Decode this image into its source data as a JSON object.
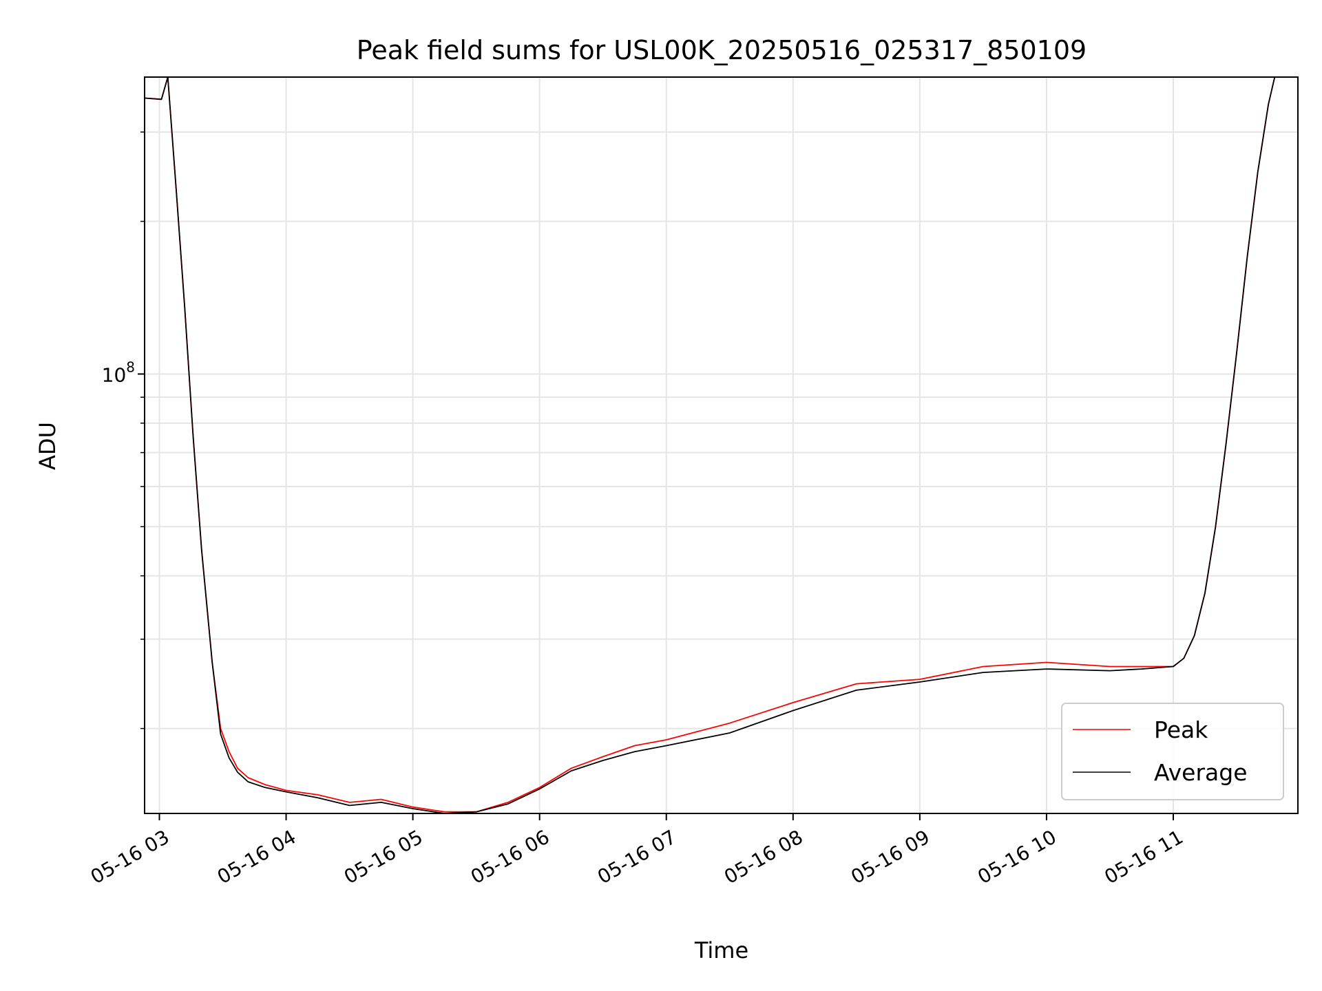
{
  "chart_data": {
    "type": "line",
    "title": "Peak field sums for USL00K_20250516_025317_850109",
    "xlabel": "Time",
    "ylabel": "ADU",
    "y_scale": "log",
    "ylim": [
      13600000,
      385000000
    ],
    "xlim": [
      "05-16 02:53",
      "05-16 11:59"
    ],
    "x_tick_labels": [
      "05-16 03",
      "05-16 04",
      "05-16 05",
      "05-16 06",
      "05-16 07",
      "05-16 08",
      "05-16 09",
      "05-16 10",
      "05-16 11"
    ],
    "x_tick_times": [
      "05-16 03:00",
      "05-16 04:00",
      "05-16 05:00",
      "05-16 06:00",
      "05-16 07:00",
      "05-16 08:00",
      "05-16 09:00",
      "05-16 10:00",
      "05-16 11:00"
    ],
    "y_tick_base": "10",
    "y_tick_exponent": "8",
    "y_tick_value": 100000000,
    "y_minor_ticks": [
      20000000,
      30000000,
      40000000,
      50000000,
      60000000,
      70000000,
      80000000,
      90000000,
      200000000,
      300000000
    ],
    "grid": true,
    "legend_position": "lower-right",
    "series": [
      {
        "name": "Peak",
        "color": "#ff0000",
        "x": [
          "05-16 02:53",
          "05-16 03:01",
          "05-16 03:04",
          "05-16 03:08",
          "05-16 03:12",
          "05-16 03:16",
          "05-16 03:20",
          "05-16 03:25",
          "05-16 03:29",
          "05-16 03:33",
          "05-16 03:37",
          "05-16 03:42",
          "05-16 03:50",
          "05-16 04:00",
          "05-16 04:15",
          "05-16 04:30",
          "05-16 04:45",
          "05-16 05:00",
          "05-16 05:15",
          "05-16 05:30",
          "05-16 05:45",
          "05-16 06:00",
          "05-16 06:15",
          "05-16 06:30",
          "05-16 06:45",
          "05-16 07:00",
          "05-16 07:30",
          "05-16 08:00",
          "05-16 08:30",
          "05-16 09:00",
          "05-16 09:30",
          "05-16 10:00",
          "05-16 10:30",
          "05-16 10:45",
          "05-16 11:00",
          "05-16 11:05",
          "05-16 11:10",
          "05-16 11:15",
          "05-16 11:20",
          "05-16 11:25",
          "05-16 11:30",
          "05-16 11:35",
          "05-16 11:40",
          "05-16 11:45",
          "05-16 11:48"
        ],
        "y": [
          350000000,
          348000000,
          385000000,
          230000000,
          135000000,
          75000000,
          45000000,
          27000000,
          20000000,
          18000000,
          16700000,
          16000000,
          15500000,
          15100000,
          14800000,
          14300000,
          14500000,
          14000000,
          13700000,
          13700000,
          14300000,
          15300000,
          16700000,
          17600000,
          18500000,
          19000000,
          20500000,
          22500000,
          24500000,
          25000000,
          26500000,
          27000000,
          26500000,
          26500000,
          26500000,
          27500000,
          30500000,
          37000000,
          50000000,
          73000000,
          110000000,
          170000000,
          250000000,
          340000000,
          385000000
        ]
      },
      {
        "name": "Average",
        "color": "#000000",
        "x": [
          "05-16 02:53",
          "05-16 03:01",
          "05-16 03:04",
          "05-16 03:08",
          "05-16 03:12",
          "05-16 03:16",
          "05-16 03:20",
          "05-16 03:25",
          "05-16 03:29",
          "05-16 03:33",
          "05-16 03:37",
          "05-16 03:42",
          "05-16 03:50",
          "05-16 04:00",
          "05-16 04:15",
          "05-16 04:30",
          "05-16 04:45",
          "05-16 05:00",
          "05-16 05:15",
          "05-16 05:30",
          "05-16 05:45",
          "05-16 06:00",
          "05-16 06:15",
          "05-16 06:30",
          "05-16 06:45",
          "05-16 07:00",
          "05-16 07:30",
          "05-16 08:00",
          "05-16 08:30",
          "05-16 09:00",
          "05-16 09:30",
          "05-16 10:00",
          "05-16 10:30",
          "05-16 10:45",
          "05-16 11:00",
          "05-16 11:05",
          "05-16 11:10",
          "05-16 11:15",
          "05-16 11:20",
          "05-16 11:25",
          "05-16 11:30",
          "05-16 11:35",
          "05-16 11:40",
          "05-16 11:45",
          "05-16 11:48"
        ],
        "y": [
          350000000,
          348000000,
          385000000,
          230000000,
          135000000,
          75000000,
          45000000,
          27000000,
          19500000,
          17500000,
          16400000,
          15700000,
          15300000,
          15000000,
          14600000,
          14100000,
          14300000,
          13900000,
          13600000,
          13700000,
          14200000,
          15200000,
          16500000,
          17300000,
          18000000,
          18500000,
          19600000,
          21700000,
          23800000,
          24700000,
          25800000,
          26200000,
          26000000,
          26200000,
          26500000,
          27500000,
          30500000,
          37000000,
          50000000,
          73000000,
          110000000,
          170000000,
          250000000,
          340000000,
          385000000
        ]
      }
    ]
  }
}
